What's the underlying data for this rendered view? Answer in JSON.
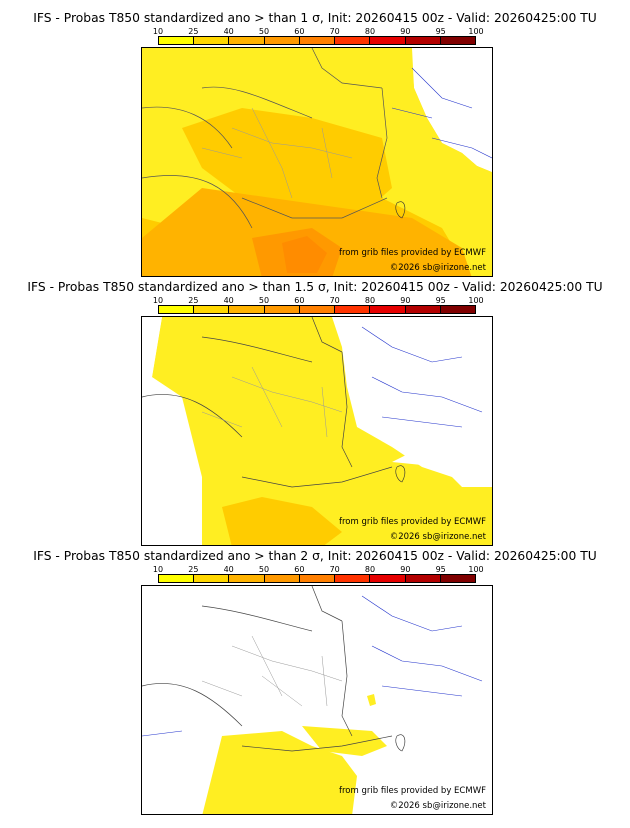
{
  "panels": [
    {
      "title": "IFS - Probas T850  standardized ano > than 1 σ, Init: 20260415 00z - Valid: 20260425:00 TU",
      "credit_source": "from grib files provided by ECMWF",
      "credit_copyright": "©2026 sb@irizone.net"
    },
    {
      "title": "IFS - Probas T850  standardized ano > than 1.5 σ, Init: 20260415 00z - Valid: 20260425:00 TU",
      "credit_source": "from grib files provided by ECMWF",
      "credit_copyright": "©2026 sb@irizone.net"
    },
    {
      "title": "IFS - Probas T850  standardized ano > than 2 σ, Init: 20260415 00z - Valid: 20260425:00 TU",
      "credit_source": "from grib files provided by ECMWF",
      "credit_copyright": "©2026 sb@irizone.net"
    }
  ],
  "colorbar": {
    "ticks": [
      "10",
      "25",
      "40",
      "50",
      "60",
      "70",
      "80",
      "90",
      "95",
      "100"
    ],
    "colors": [
      "#ffff00",
      "#ffd700",
      "#ffb300",
      "#ff9900",
      "#ff7f00",
      "#ff3300",
      "#e60000",
      "#b30000",
      "#800000"
    ]
  },
  "fill_colors": {
    "low": "#ffeb1a",
    "mid": "#ffcc00",
    "high": "#ffaa00",
    "peak": "#ff8c00",
    "borders": "#555555",
    "regions": "#aaaaaa",
    "rivers": "#2233cc"
  }
}
